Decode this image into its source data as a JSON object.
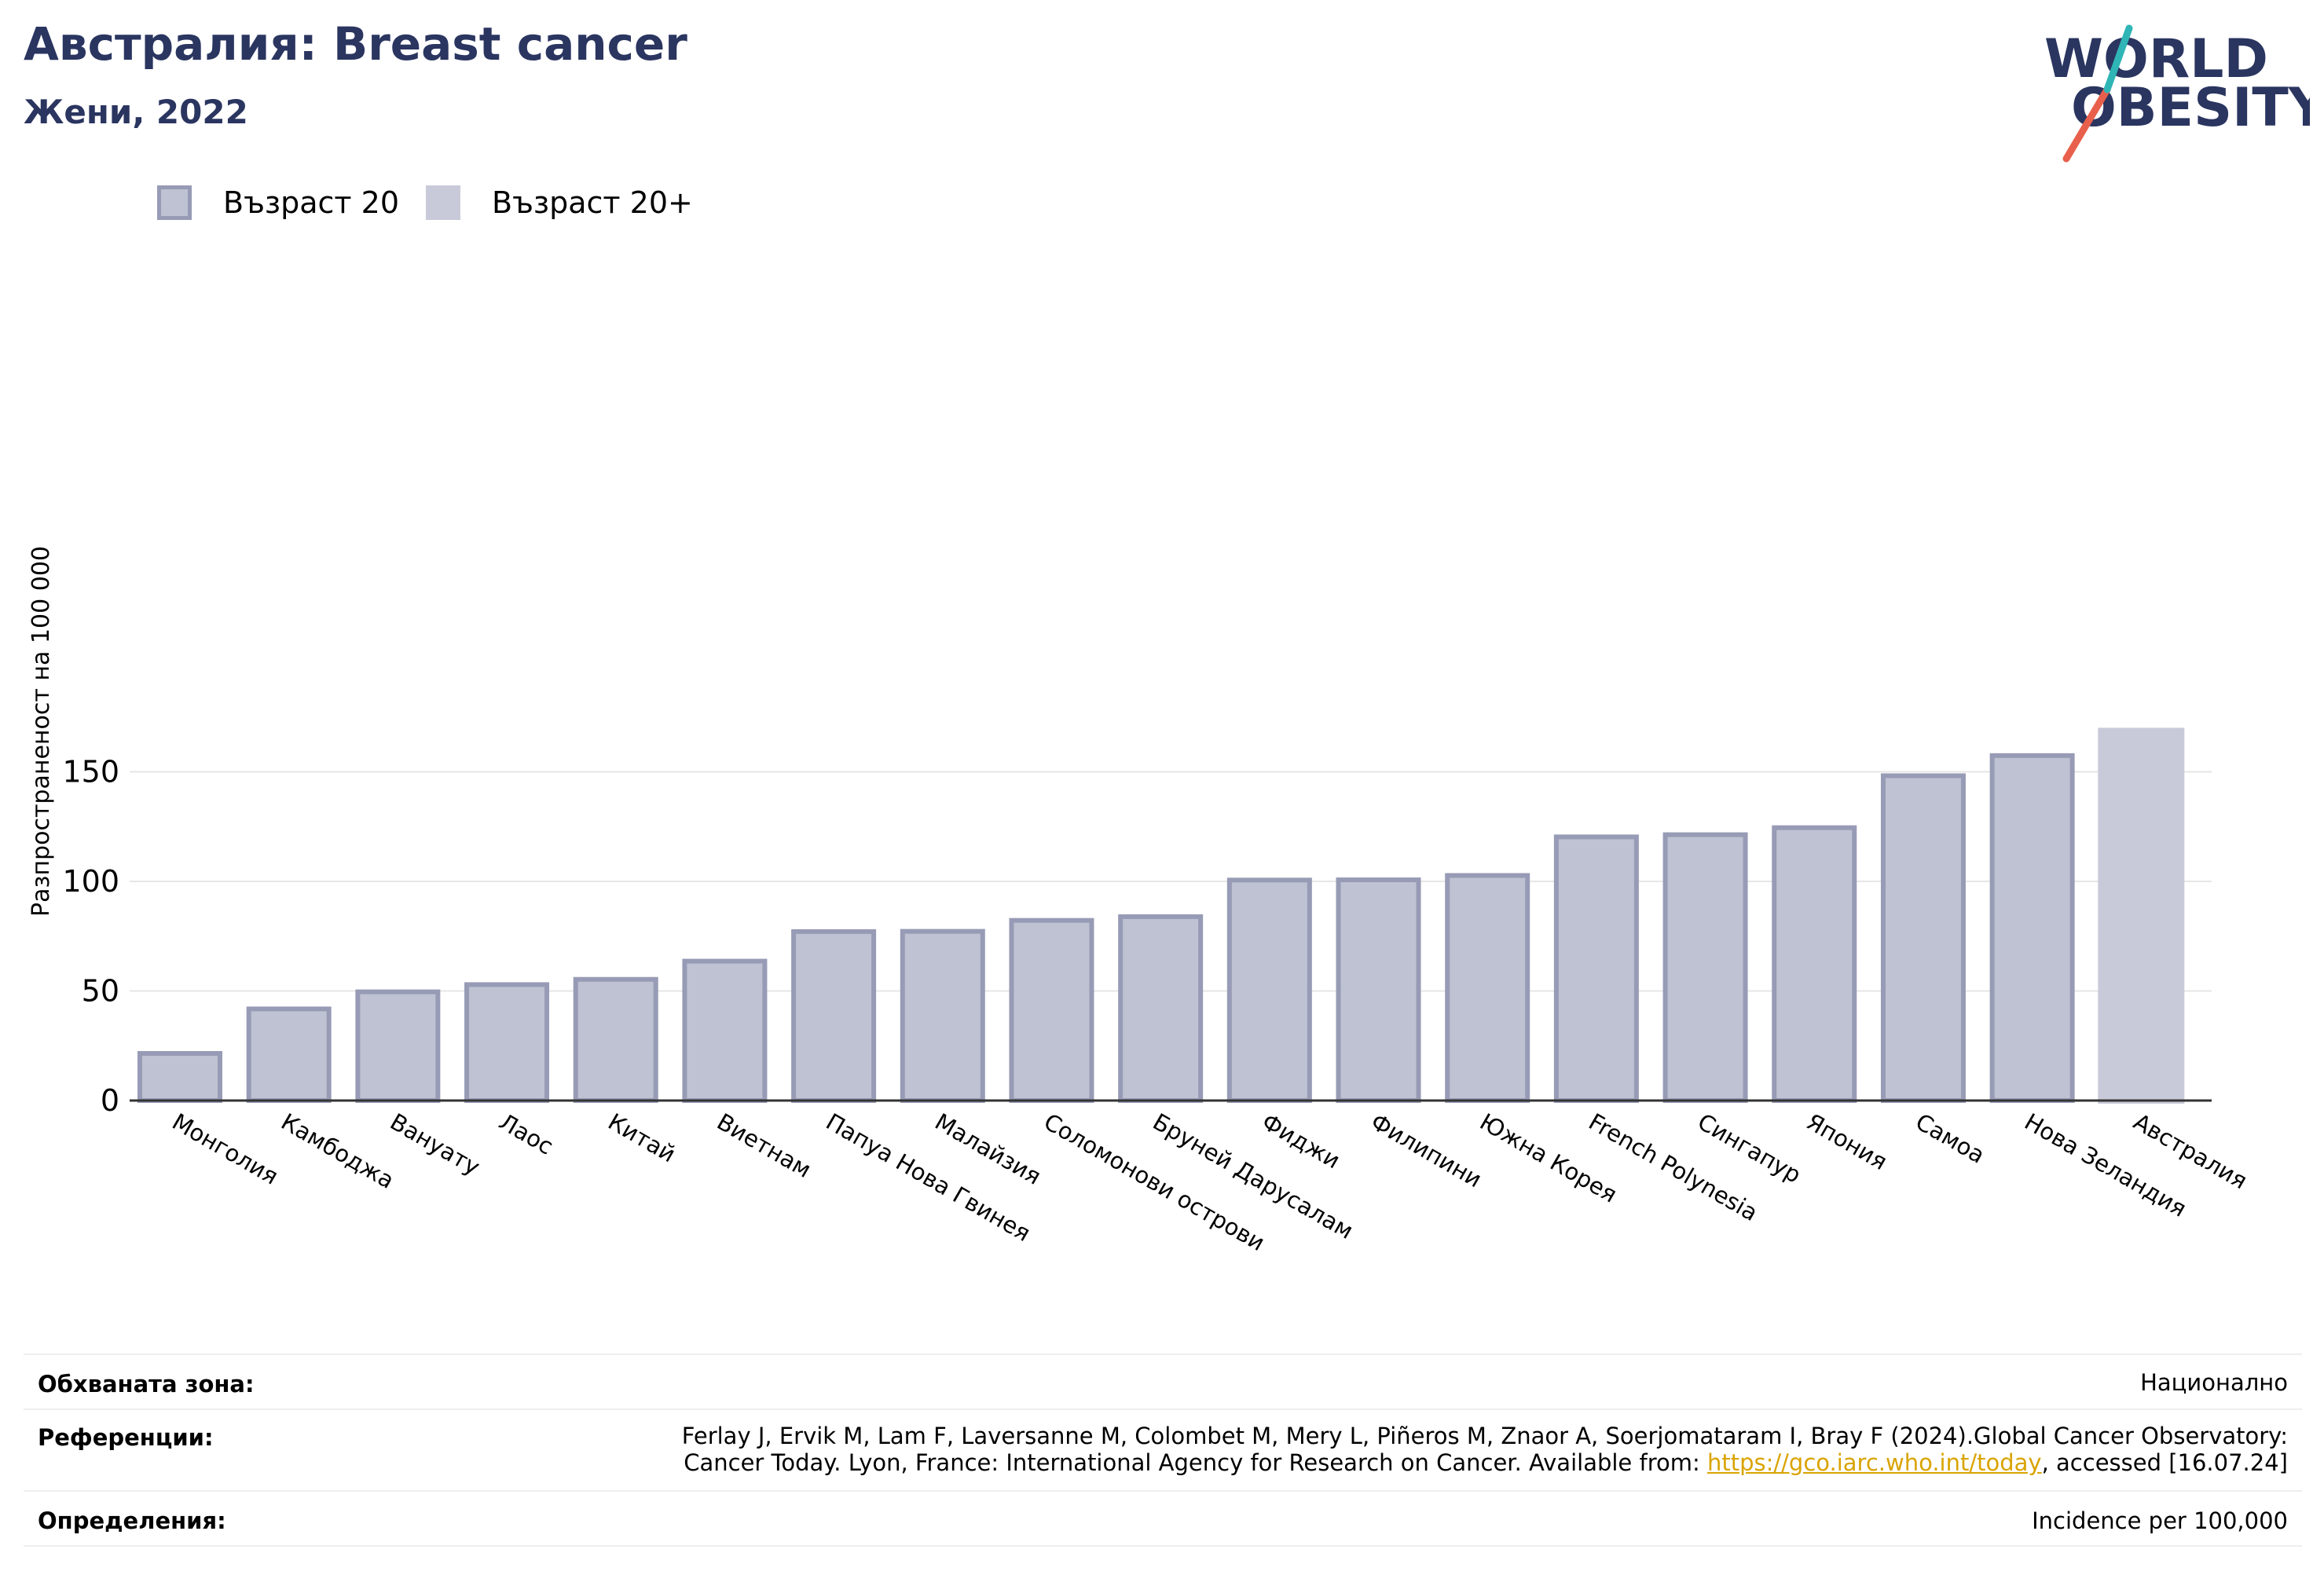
{
  "header": {
    "title": "Австралия: Breast cancer",
    "subtitle": "Жени, 2022"
  },
  "logo": {
    "line1": "WORLD",
    "line2": "OBESITY"
  },
  "legend": {
    "items": [
      {
        "label": "Възраст 20",
        "color": "#bfc2d2",
        "border": "#979bb5"
      },
      {
        "label": "Възраст 20+",
        "color": "#c9cad9"
      }
    ]
  },
  "chart_data": {
    "type": "bar",
    "ylabel": "Разпространеност  на 100 000",
    "ylim": [
      0,
      170
    ],
    "yticks": [
      0,
      50,
      100,
      150
    ],
    "grid": true,
    "legend_position": "top-left",
    "categories": [
      "Монголия",
      "Камбоджа",
      "Вануату",
      "Лаос",
      "Китай",
      "Виетнам",
      "Папуа Нова Гвинея",
      "Малайзия",
      "Соломонови острови",
      "Бруней Дарусалам",
      "Фиджи",
      "Филипини",
      "Южна Корея",
      "French Polynesia",
      "Сингапур",
      "Япония",
      "Самоа",
      "Нова Зеландия",
      "Австралия"
    ],
    "series": [
      {
        "name": "Възраст 20",
        "values": [
          21.5,
          41.8,
          49.6,
          52.9,
          55.3,
          63.6,
          77.1,
          77.2,
          82.2,
          83.9,
          100.6,
          100.7,
          102.7,
          120.3,
          121.3,
          124.5,
          148.2,
          157.4,
          null
        ]
      },
      {
        "name": "Възраст 20+",
        "values": [
          null,
          null,
          null,
          null,
          null,
          null,
          null,
          null,
          null,
          null,
          null,
          null,
          null,
          null,
          null,
          null,
          null,
          null,
          170.1
        ]
      }
    ]
  },
  "footer": {
    "coverage_label": "Обхваната зона:",
    "coverage_value": "Национално",
    "references_label": "Референции:",
    "references_line1": "Ferlay J, Ervik M, Lam F, Laversanne M, Colombet M, Mery L, Piñeros M, Znaor A, Soerjomataram I, Bray F (2024).Global Cancer Observatory:",
    "references_line2_prefix": "Cancer Today. Lyon, France: International Agency for Research on Cancer. Available from: ",
    "references_link": "https://gco.iarc.who.int/today",
    "references_line2_suffix": ", accessed [16.07.24]",
    "definitions_label": "Определения:",
    "definitions_value": "Incidence per 100,000"
  },
  "colors": {
    "title": "#2a3560",
    "bar_fill": "#bfc2d2",
    "bar_stroke": "#979bb5",
    "bar_highlight": "#c9cad9",
    "logo_accent_red": "#e8604c",
    "logo_accent_teal": "#2fb5b5"
  }
}
